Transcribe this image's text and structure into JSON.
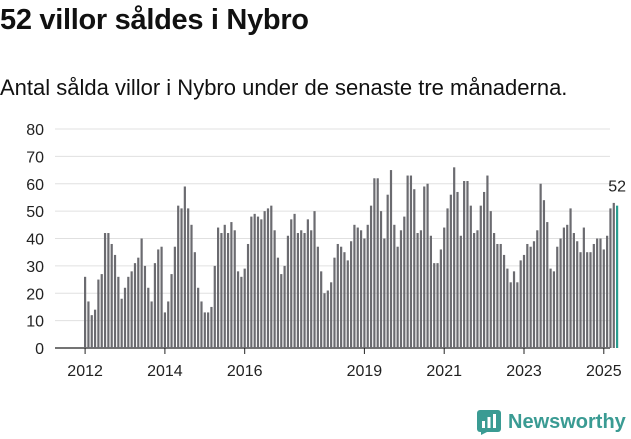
{
  "title": "52 villor såldes i Nybro",
  "subtitle": "Antal sålda villor i Nybro under de senaste tre månaderna.",
  "brand": "Newsworthy",
  "colors": {
    "bar": "#6b6b70",
    "highlight": "#2a9d8f",
    "grid": "#e0e0e0",
    "brand": "#3a9b93"
  },
  "chart_data": {
    "type": "bar",
    "title": "52 villor såldes i Nybro",
    "xlabel": "",
    "ylabel": "",
    "ylim": [
      0,
      80
    ],
    "yticks": [
      0,
      10,
      20,
      30,
      40,
      50,
      60,
      70,
      80
    ],
    "grid": true,
    "x_start_year": 2012,
    "x_start_month": 1,
    "xticks": [
      2012,
      2014,
      2016,
      2019,
      2021,
      2023,
      2025
    ],
    "highlight_label": "52",
    "values": [
      26,
      17,
      12,
      14,
      25,
      27,
      42,
      42,
      38,
      34,
      26,
      18,
      22,
      26,
      28,
      31,
      33,
      40,
      30,
      22,
      17,
      31,
      36,
      37,
      13,
      17,
      27,
      37,
      52,
      51,
      59,
      51,
      45,
      35,
      22,
      17,
      13,
      13,
      15,
      30,
      44,
      42,
      45,
      42,
      46,
      43,
      28,
      26,
      29,
      38,
      48,
      49,
      48,
      47,
      50,
      51,
      52,
      43,
      33,
      27,
      30,
      41,
      47,
      49,
      42,
      43,
      42,
      47,
      43,
      50,
      37,
      28,
      20,
      21,
      24,
      33,
      38,
      37,
      35,
      32,
      39,
      45,
      44,
      43,
      40,
      45,
      52,
      62,
      62,
      50,
      40,
      56,
      65,
      45,
      37,
      43,
      48,
      63,
      63,
      58,
      42,
      43,
      59,
      60,
      41,
      31,
      31,
      36,
      44,
      51,
      56,
      66,
      57,
      41,
      61,
      61,
      52,
      42,
      43,
      52,
      57,
      63,
      50,
      42,
      38,
      38,
      34,
      29,
      24,
      28,
      24,
      32,
      34,
      38,
      37,
      39,
      43,
      60,
      54,
      46,
      29,
      28,
      37,
      40,
      44,
      45,
      51,
      42,
      39,
      35,
      44,
      35,
      35,
      38,
      40,
      40,
      36,
      41,
      51,
      53,
      52
    ]
  }
}
